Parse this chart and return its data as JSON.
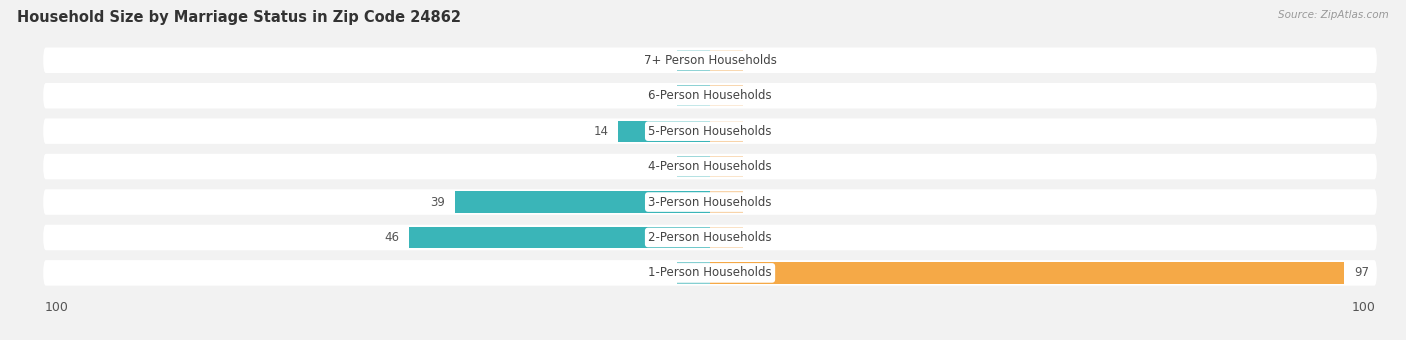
{
  "title": "Household Size by Marriage Status in Zip Code 24862",
  "source": "Source: ZipAtlas.com",
  "categories": [
    "7+ Person Households",
    "6-Person Households",
    "5-Person Households",
    "4-Person Households",
    "3-Person Households",
    "2-Person Households",
    "1-Person Households"
  ],
  "family_values": [
    0,
    0,
    14,
    0,
    39,
    46,
    0
  ],
  "nonfamily_values": [
    0,
    0,
    0,
    0,
    0,
    0,
    97
  ],
  "family_color": "#3ab5b8",
  "nonfamily_color": "#f5a947",
  "family_color_light": "#85cfd1",
  "nonfamily_color_light": "#f8d4aa",
  "bg_color": "#f2f2f2",
  "row_bg_color": "#e8e8e8",
  "xlim": 100,
  "zero_stub": 5,
  "bar_height": 0.6,
  "title_fontsize": 10.5,
  "label_fontsize": 8.5,
  "value_fontsize": 8.5,
  "axis_label_fontsize": 9,
  "legend_fontsize": 9
}
